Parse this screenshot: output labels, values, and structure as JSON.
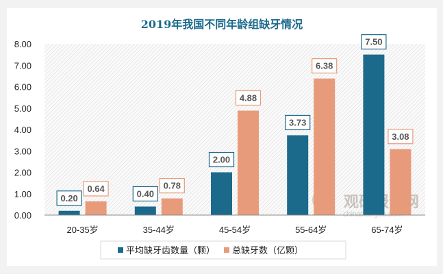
{
  "chart_data": {
    "type": "bar",
    "title": "2019年我国不同年龄组缺牙情况",
    "categories": [
      "20-35岁",
      "35-44岁",
      "45-54岁",
      "55-64岁",
      "65-74岁"
    ],
    "series": [
      {
        "name": "平均缺牙齿数量（颗）",
        "color": "#1b6a8c",
        "values": [
          0.2,
          0.4,
          2.0,
          3.73,
          7.5
        ]
      },
      {
        "name": "总缺牙数（亿颗）",
        "color": "#e89b7a",
        "values": [
          0.64,
          0.78,
          4.88,
          6.38,
          3.08
        ]
      }
    ],
    "ylim": [
      0,
      8
    ],
    "yticks": [
      "0.00",
      "1.00",
      "2.00",
      "3.00",
      "4.00",
      "5.00",
      "6.00",
      "7.00",
      "8.00"
    ],
    "grid": false,
    "legend": "bottom",
    "title_color": "#1b6a8c"
  },
  "watermark": {
    "name": "观研报告网",
    "url": "chinabaogao.com"
  }
}
